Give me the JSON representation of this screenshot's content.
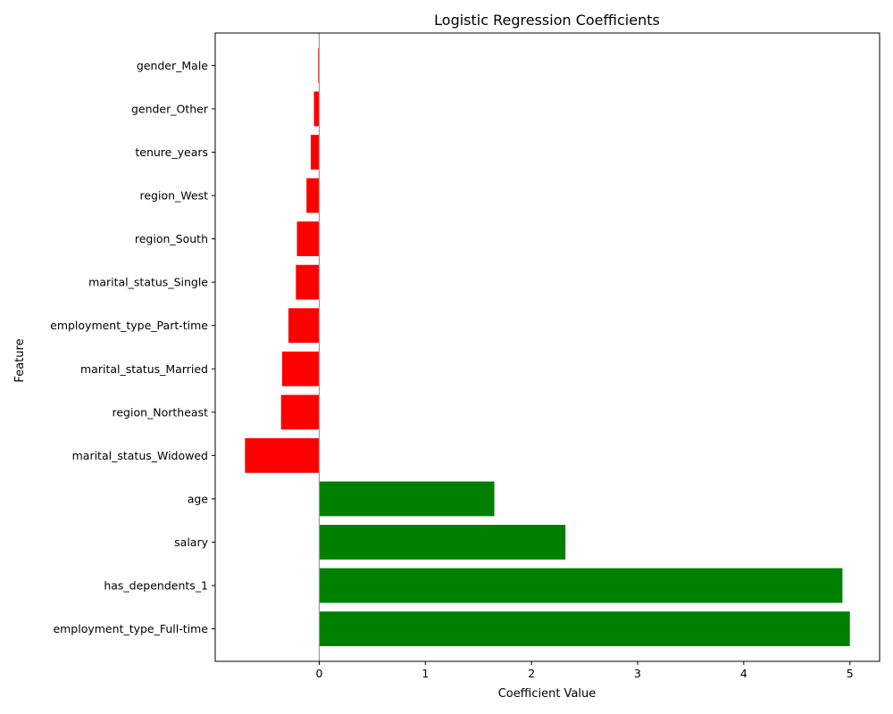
{
  "chart_data": {
    "type": "bar",
    "orientation": "horizontal",
    "title": "Logistic Regression Coefficients",
    "xlabel": "Coefficient Value",
    "ylabel": "Feature",
    "xlim": [
      -0.98,
      5.28
    ],
    "xticks": [
      0,
      1,
      2,
      3,
      4,
      5
    ],
    "grid": false,
    "legend": "none",
    "zero_line": true,
    "colors": {
      "positive": "#008000",
      "negative": "#ff0000",
      "zero_line": "#999999"
    },
    "categories": [
      "employment_type_Full-time",
      "has_dependents_1",
      "salary",
      "age",
      "marital_status_Widowed",
      "region_Northeast",
      "marital_status_Married",
      "employment_type_Part-time",
      "marital_status_Single",
      "region_South",
      "region_West",
      "tenure_years",
      "gender_Other",
      "gender_Male"
    ],
    "values": [
      5.0,
      4.93,
      2.32,
      1.65,
      -0.7,
      -0.36,
      -0.35,
      -0.29,
      -0.22,
      -0.21,
      -0.12,
      -0.08,
      -0.05,
      -0.01
    ]
  }
}
